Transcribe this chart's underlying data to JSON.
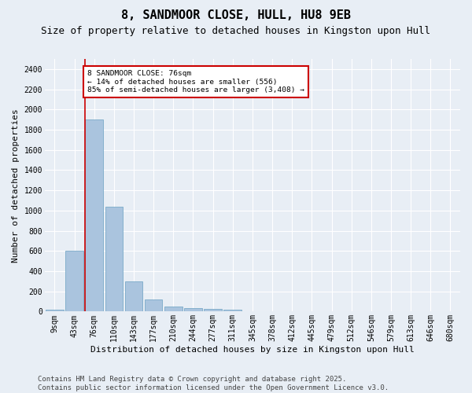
{
  "title": "8, SANDMOOR CLOSE, HULL, HU8 9EB",
  "subtitle": "Size of property relative to detached houses in Kingston upon Hull",
  "xlabel": "Distribution of detached houses by size in Kingston upon Hull",
  "ylabel": "Number of detached properties",
  "footer_line1": "Contains HM Land Registry data © Crown copyright and database right 2025.",
  "footer_line2": "Contains public sector information licensed under the Open Government Licence v3.0.",
  "categories": [
    "9sqm",
    "43sqm",
    "76sqm",
    "110sqm",
    "143sqm",
    "177sqm",
    "210sqm",
    "244sqm",
    "277sqm",
    "311sqm",
    "345sqm",
    "378sqm",
    "412sqm",
    "445sqm",
    "479sqm",
    "512sqm",
    "546sqm",
    "579sqm",
    "613sqm",
    "646sqm",
    "680sqm"
  ],
  "values": [
    20,
    600,
    1900,
    1040,
    300,
    120,
    50,
    35,
    25,
    15,
    5,
    3,
    2,
    1,
    1,
    0,
    0,
    0,
    0,
    0,
    0
  ],
  "bar_color": "#aac4de",
  "bar_edge_color": "#7aaac8",
  "vline_color": "#cc0000",
  "annotation_text": "8 SANDMOOR CLOSE: 76sqm\n← 14% of detached houses are smaller (556)\n85% of semi-detached houses are larger (3,408) →",
  "annotation_box_color": "#cc0000",
  "annotation_fill": "#ffffff",
  "ylim": [
    0,
    2500
  ],
  "yticks": [
    0,
    200,
    400,
    600,
    800,
    1000,
    1200,
    1400,
    1600,
    1800,
    2000,
    2200,
    2400
  ],
  "background_color": "#e8eef5",
  "grid_color": "#ffffff",
  "title_fontsize": 11,
  "subtitle_fontsize": 9,
  "tick_fontsize": 7,
  "label_fontsize": 8,
  "footer_fontsize": 6.5
}
